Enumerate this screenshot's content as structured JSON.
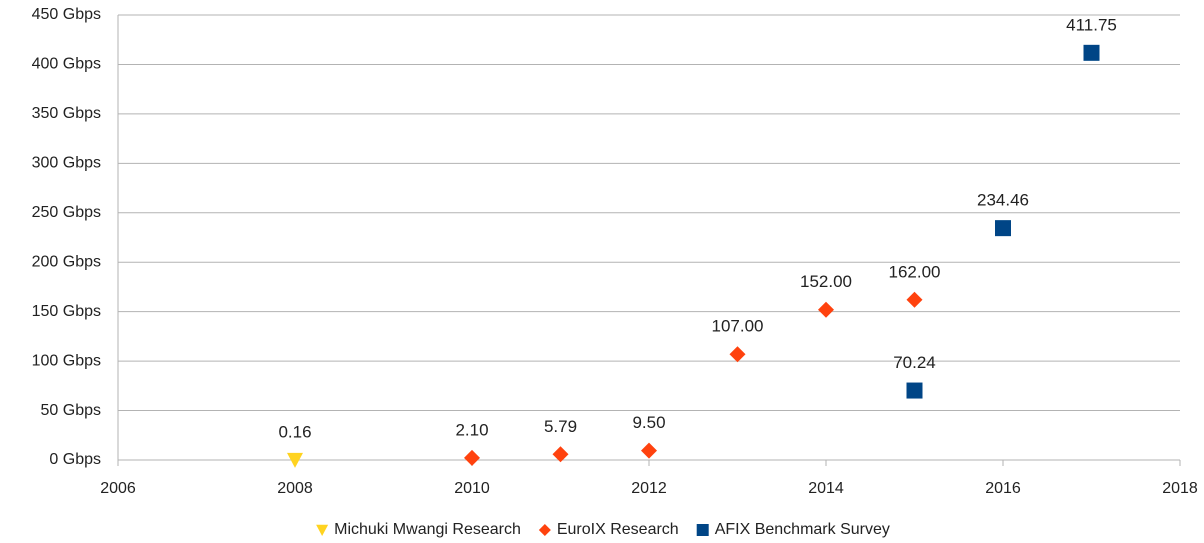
{
  "chart_data": {
    "type": "scatter",
    "series": [
      {
        "name": "Michuki Mwangi Research",
        "color": "#ffd320",
        "marker": "triangle-down",
        "x": [
          2008
        ],
        "values": [
          0.16
        ],
        "value_labels": [
          "0.16"
        ]
      },
      {
        "name": "EuroIX Research",
        "color": "#ff420e",
        "marker": "diamond",
        "x": [
          2010,
          2011,
          2012,
          2013,
          2014,
          2015
        ],
        "values": [
          2.1,
          5.79,
          9.5,
          107,
          152,
          162
        ],
        "value_labels": [
          "2.10",
          "5.79",
          "9.50",
          "107.00",
          "152.00",
          "162.00"
        ]
      },
      {
        "name": "AFIX Benchmark Survey",
        "color": "#004586",
        "marker": "square",
        "x": [
          2015,
          2016,
          2017
        ],
        "values": [
          70.24,
          234.46,
          411.75
        ],
        "value_labels": [
          "70.24",
          "234.46",
          "411.75"
        ]
      }
    ],
    "xlim": [
      2006,
      2018
    ],
    "xticks": [
      2006,
      2008,
      2010,
      2012,
      2014,
      2016,
      2018
    ],
    "ylim": [
      0,
      450
    ],
    "yticks": [
      {
        "value": 0,
        "label": "0 Gbps"
      },
      {
        "value": 50,
        "label": "50 Gbps"
      },
      {
        "value": 100,
        "label": "100 Gbps"
      },
      {
        "value": 150,
        "label": "150 Gbps"
      },
      {
        "value": 200,
        "label": "200 Gbps"
      },
      {
        "value": 250,
        "label": "250 Gbps"
      },
      {
        "value": 300,
        "label": "300 Gbps"
      },
      {
        "value": 350,
        "label": "350 Gbps"
      },
      {
        "value": 400,
        "label": "400 Gbps"
      },
      {
        "value": 450,
        "label": "450 Gbps"
      }
    ],
    "grid": true,
    "legend": "bottom"
  }
}
